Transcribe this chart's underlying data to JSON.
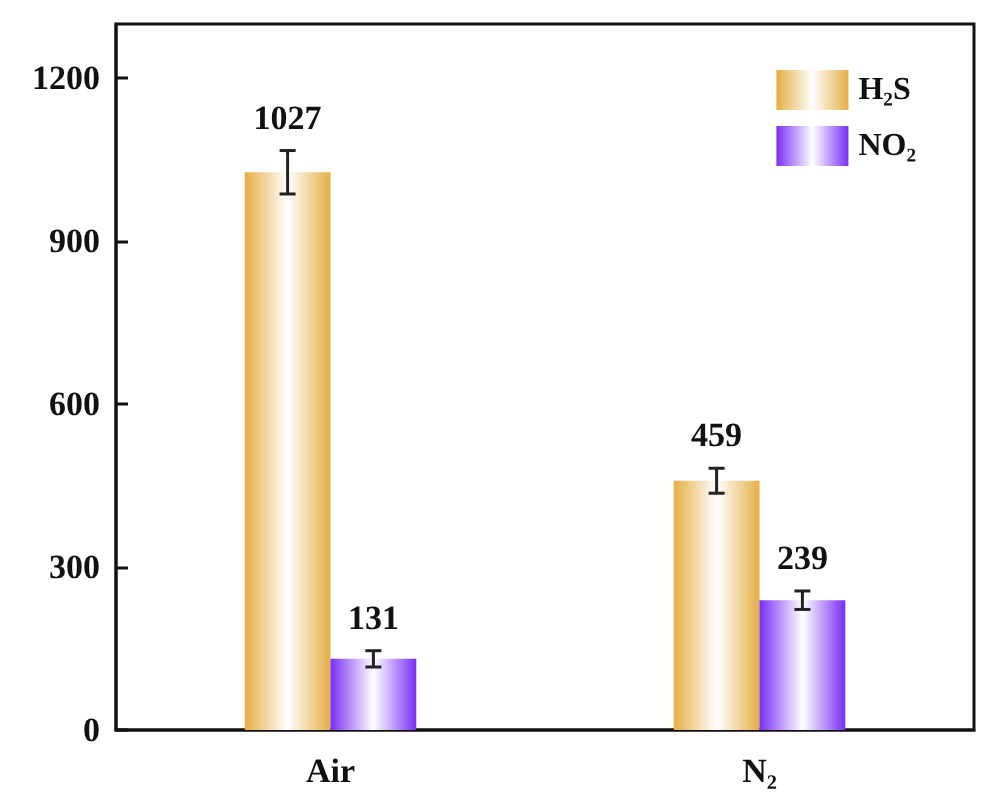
{
  "chart_data": {
    "type": "bar",
    "categories": [
      "Air",
      "N₂"
    ],
    "series": [
      {
        "name": "H₂S",
        "color": "#e6ae45",
        "values": [
          1027,
          459
        ],
        "errors": [
          40,
          23
        ]
      },
      {
        "name": "NO₂",
        "color": "#7a2ef5",
        "values": [
          131,
          239
        ],
        "errors": [
          15,
          17
        ]
      }
    ],
    "ylim": [
      0,
      1300
    ],
    "yticks": [
      0,
      300,
      600,
      900,
      1200
    ],
    "grid": false,
    "legend": "top right",
    "data_labels": true
  }
}
